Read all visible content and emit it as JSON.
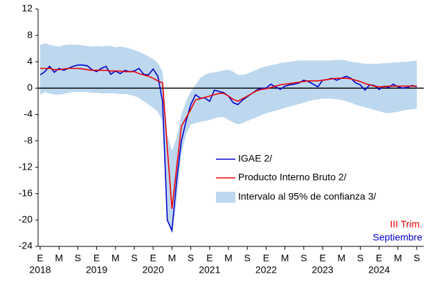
{
  "chart_data": {
    "type": "line",
    "categories": [
      "E",
      null,
      null,
      null,
      "M",
      null,
      null,
      null,
      "S",
      null,
      null,
      null,
      "E",
      null,
      null,
      null,
      "M",
      null,
      null,
      null,
      "S",
      null,
      null,
      null,
      "E",
      null,
      null,
      null,
      "M",
      null,
      null,
      null,
      "S",
      null,
      null,
      null,
      "E",
      null,
      null,
      null,
      "M",
      null,
      null,
      null,
      "S",
      null,
      null,
      null,
      "E",
      null,
      null,
      null,
      "M",
      null,
      null,
      null,
      "S",
      null,
      null,
      null,
      "E",
      null,
      null,
      null,
      "M",
      null,
      null,
      null,
      "S",
      null,
      null,
      null,
      "E",
      null,
      null,
      null,
      "M",
      null,
      null,
      null,
      "S"
    ],
    "year_labels": [
      "2018",
      "2019",
      "2020",
      "2021",
      "2022",
      "2023",
      "2024"
    ],
    "ylim": [
      -24,
      12
    ],
    "yticks": [
      -24,
      -20,
      -16,
      -12,
      -8,
      -4,
      0,
      4,
      8,
      12
    ],
    "zero_line": true,
    "band": {
      "name": "Intervalo al 95% de confianza 3/",
      "color": "#bdd7ee",
      "upper": [
        6.5,
        6.8,
        6.6,
        6.4,
        6.3,
        6.5,
        6.6,
        6.6,
        6.6,
        6.5,
        6.4,
        6.3,
        6.4,
        6.3,
        6.4,
        6.4,
        6.2,
        6.3,
        6.2,
        6.0,
        5.8,
        5.5,
        5.2,
        4.8,
        4.4,
        3.8,
        2.5,
        -7,
        -9.5,
        -7.5,
        -4,
        -2,
        -0.5,
        0.5,
        1.5,
        2.0,
        2.3,
        2.4,
        2.5,
        2.7,
        2.8,
        2.5,
        2.0,
        2.0,
        2.2,
        2.5,
        2.8,
        3.1,
        3.3,
        3.5,
        3.6,
        3.8,
        3.9,
        4.0,
        4.1,
        4.2,
        4.2,
        4.2,
        4.2,
        4.2,
        4.2,
        4.2,
        4.2,
        4.3,
        4.3,
        4.2,
        4.0,
        3.9,
        3.8,
        3.7,
        3.7,
        3.7,
        3.7,
        3.8,
        3.8,
        3.9,
        3.9,
        4.0,
        4.0,
        4.1,
        4.2
      ],
      "lower": [
        -1.0,
        -0.6,
        -0.8,
        -1.0,
        -1.0,
        -0.9,
        -0.7,
        -0.6,
        -0.6,
        -0.6,
        -0.6,
        -0.7,
        -0.7,
        -0.8,
        -0.8,
        -0.8,
        -0.8,
        -0.9,
        -0.9,
        -1.0,
        -1.2,
        -1.5,
        -2.0,
        -2.5,
        -3.0,
        -3.6,
        -5.0,
        -20,
        -22,
        -17,
        -10,
        -7,
        -5.5,
        -5.3,
        -5.1,
        -5.0,
        -4.8,
        -4.6,
        -4.4,
        -4.4,
        -4.8,
        -5.2,
        -5.5,
        -5.3,
        -5.0,
        -4.7,
        -4.4,
        -4.1,
        -3.8,
        -3.6,
        -3.4,
        -3.2,
        -3.0,
        -2.8,
        -2.6,
        -2.4,
        -2.2,
        -2.0,
        -1.8,
        -1.7,
        -1.6,
        -1.6,
        -1.6,
        -1.7,
        -1.8,
        -2.0,
        -2.2,
        -2.5,
        -2.7,
        -2.9,
        -3.1,
        -3.3,
        -3.5,
        -3.7,
        -3.8,
        -3.7,
        -3.6,
        -3.4,
        -3.3,
        -3.2,
        -3.1
      ]
    },
    "series": [
      {
        "name": "IGAE 2/",
        "color": "#0000cc",
        "values": [
          2.0,
          2.5,
          3.3,
          2.4,
          3.0,
          2.7,
          3.0,
          3.3,
          3.5,
          3.5,
          3.4,
          2.8,
          2.5,
          3.0,
          3.3,
          2.1,
          2.6,
          2.2,
          2.7,
          2.5,
          2.6,
          3.0,
          2.1,
          2.0,
          2.9,
          1.8,
          -2.0,
          -20.0,
          -21.6,
          -14.0,
          -8.0,
          -5.0,
          -2.5,
          -1.0,
          -1.5,
          -1.5,
          -2.0,
          -0.3,
          -0.5,
          -0.7,
          -1.2,
          -2.2,
          -2.5,
          -1.8,
          -1.3,
          -0.8,
          -0.3,
          0.0,
          0.0,
          0.6,
          0.2,
          -0.2,
          0.3,
          0.5,
          0.6,
          0.8,
          1.2,
          1.0,
          0.6,
          0.2,
          1.2,
          1.3,
          1.5,
          1.2,
          1.5,
          1.8,
          1.5,
          0.8,
          0.5,
          -0.3,
          0.5,
          0.4,
          -0.2,
          0.3,
          0.1,
          0.6,
          0.2,
          0.0,
          0.1,
          0.4,
          0.2
        ]
      },
      {
        "name": "Producto Interno Bruto 2/",
        "color": "#ee0000",
        "values": [
          3.0,
          3.0,
          3.0,
          2.8,
          2.8,
          2.9,
          3.0,
          3.0,
          3.0,
          2.9,
          2.8,
          2.7,
          2.7,
          2.7,
          2.7,
          2.6,
          2.6,
          2.6,
          2.5,
          2.5,
          2.5,
          2.2,
          2.0,
          1.8,
          1.5,
          1.1,
          0.8,
          -9,
          -18.3,
          -12,
          -5.8,
          -4.5,
          -3.2,
          -1.8,
          -1.6,
          -1.4,
          -1.2,
          -1.0,
          -0.8,
          -0.8,
          -1.2,
          -1.7,
          -2.0,
          -1.6,
          -1.2,
          -0.8,
          -0.4,
          -0.2,
          -0.1,
          0.1,
          0.3,
          0.5,
          0.6,
          0.7,
          0.8,
          0.9,
          1.0,
          1.1,
          1.1,
          1.1,
          1.2,
          1.3,
          1.4,
          1.5,
          1.5,
          1.5,
          1.4,
          1.2,
          1.0,
          0.7,
          0.5,
          0.3,
          0.2,
          0.2,
          0.3,
          0.3,
          0.3,
          0.3,
          0.3,
          0.3,
          0.3
        ]
      }
    ],
    "annotations": [
      {
        "text": "III Trim.",
        "color": "#ee0000"
      },
      {
        "text": "Septiembre",
        "color": "#0000cc"
      }
    ]
  }
}
